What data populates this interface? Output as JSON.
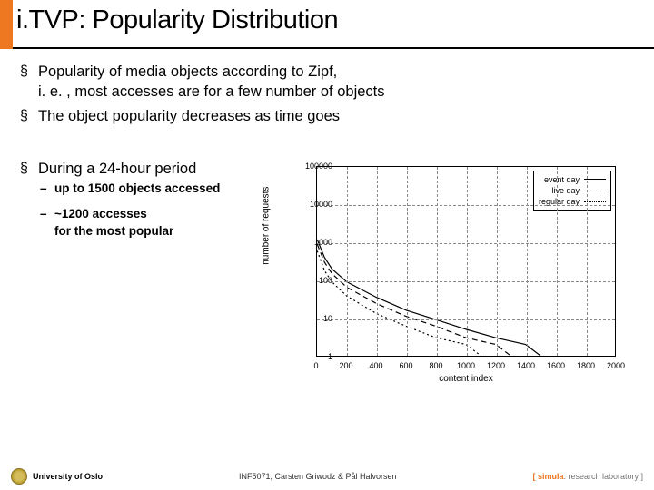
{
  "title": "i.TVP: Popularity Distribution",
  "bullets_top": [
    "Popularity of media objects according to Zipf,\ni. e. , most accesses are for a few number of objects",
    "The object popularity decreases as time goes"
  ],
  "bullet_lower": "During a 24-hour period",
  "sub_bullets": [
    "up to 1500 objects accessed",
    "~1200 accesses\nfor the most popular"
  ],
  "chart": {
    "type": "line-log",
    "xlabel": "content index",
    "ylabel": "number of requests",
    "xlim": [
      0,
      2000
    ],
    "ylim": [
      1,
      100000
    ],
    "xtick_step": 200,
    "yticks": [
      1,
      10,
      100,
      1000,
      10000,
      100000
    ],
    "grid_color": "#888888",
    "background_color": "#ffffff",
    "axis_color": "#000000",
    "label_fontsize": 10,
    "tick_fontsize": 9,
    "legend": {
      "position": "top-right",
      "items": [
        {
          "label": "event day",
          "color": "#000000",
          "dash": "solid"
        },
        {
          "label": "live day",
          "color": "#000000",
          "dash": "dashed"
        },
        {
          "label": "regular day",
          "color": "#000000",
          "dash": "dotted"
        }
      ]
    },
    "series": [
      {
        "name": "event day",
        "color": "#000000",
        "dash": "solid",
        "points": [
          [
            1,
            1200
          ],
          [
            50,
            400
          ],
          [
            100,
            200
          ],
          [
            200,
            90
          ],
          [
            400,
            35
          ],
          [
            600,
            16
          ],
          [
            800,
            9
          ],
          [
            1000,
            5
          ],
          [
            1200,
            3
          ],
          [
            1400,
            2
          ],
          [
            1500,
            1
          ]
        ]
      },
      {
        "name": "live day",
        "color": "#000000",
        "dash": "dashed",
        "points": [
          [
            1,
            900
          ],
          [
            50,
            300
          ],
          [
            100,
            150
          ],
          [
            200,
            65
          ],
          [
            400,
            24
          ],
          [
            600,
            11
          ],
          [
            800,
            6
          ],
          [
            1000,
            3
          ],
          [
            1200,
            2
          ],
          [
            1300,
            1
          ]
        ]
      },
      {
        "name": "regular day",
        "color": "#000000",
        "dash": "dotted",
        "points": [
          [
            1,
            600
          ],
          [
            50,
            180
          ],
          [
            100,
            90
          ],
          [
            200,
            38
          ],
          [
            400,
            13
          ],
          [
            600,
            6
          ],
          [
            800,
            3
          ],
          [
            1000,
            2
          ],
          [
            1100,
            1
          ]
        ]
      }
    ]
  },
  "footer": {
    "university": "University of Oslo",
    "course": "INF5071, Carsten Griwodz & Pål Halvorsen",
    "lab_prefix": "[ ",
    "lab_name": "simula",
    "lab_suffix": ". research laboratory ]"
  }
}
